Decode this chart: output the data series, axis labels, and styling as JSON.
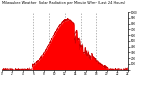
{
  "title": "Milwaukee Weather  Solar Radiation per Minute W/m² (Last 24 Hours)",
  "bg_color": "#ffffff",
  "fill_color": "#ff0000",
  "line_color": "#cc0000",
  "grid_color": "#999999",
  "num_points": 1440,
  "peak_hour": 12.5,
  "peak_value": 870,
  "dashed_lines_hours": [
    6,
    9,
    12,
    15,
    18
  ],
  "xlim": [
    0,
    1440
  ],
  "ylim": [
    0,
    1000
  ],
  "right_ticks": [
    0,
    100,
    200,
    300,
    400,
    500,
    600,
    700,
    800,
    900,
    1000
  ],
  "x_tick_hours": [
    0,
    2,
    4,
    6,
    8,
    10,
    12,
    14,
    16,
    18,
    20,
    22,
    24
  ]
}
